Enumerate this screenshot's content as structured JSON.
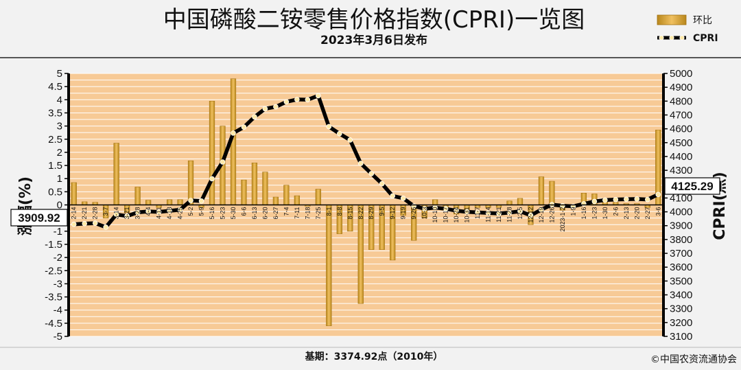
{
  "chart_data": {
    "type": "bar",
    "title": "中国磷酸二铵零售价格指数(CPRI)一览图",
    "subtitle": "2023年3月6日发布",
    "ylabel_left": "涨幅(%)",
    "ylabel_right": "CPRI(点)",
    "ylim_left": [
      -5,
      5
    ],
    "ylim_right": [
      3100,
      5000
    ],
    "yticks_left": [
      "5",
      "4.5",
      "4",
      "3.5",
      "3",
      "2.5",
      "2",
      "1.5",
      "1",
      "0.5",
      "0",
      "-0.5",
      "-1",
      "-1.5",
      "-2",
      "-2.5",
      "-3",
      "-3.5",
      "-4",
      "-4.5",
      "-5"
    ],
    "yticks_right": [
      "5000",
      "4900",
      "4800",
      "4700",
      "4600",
      "4500",
      "4400",
      "4300",
      "4200",
      "4100",
      "4000",
      "3900",
      "3800",
      "3700",
      "3600",
      "3500",
      "3400",
      "3300",
      "3200",
      "3100"
    ],
    "categories": [
      "2-14",
      "2-21",
      "2-28",
      "3-7",
      "3-14",
      "3-21",
      "3-28",
      "4-4",
      "4-11",
      "4-18",
      "4-25",
      "5-2",
      "5-9",
      "5-16",
      "5-23",
      "5-30",
      "6-6",
      "6-13",
      "6-20",
      "6-27",
      "7-4",
      "7-11",
      "7-18",
      "7-25",
      "8-1",
      "8-8",
      "8-15",
      "8-22",
      "8-29",
      "9-5",
      "9-12",
      "9-19",
      "9-26",
      "10-3",
      "10-10",
      "10-17",
      "10-24",
      "10-31",
      "11-7",
      "11-14",
      "11-21",
      "11-28",
      "12-5",
      "12-12",
      "12-19",
      "12-26",
      "2023-1-2",
      "1-9",
      "1-16",
      "1-23",
      "1-30",
      "2-6",
      "2-13",
      "2-20",
      "2-27",
      "3-6"
    ],
    "series": [
      {
        "name": "环比",
        "type": "bar",
        "axis": "left",
        "values": [
          0.85,
          0.12,
          0.1,
          -0.5,
          2.35,
          -0.3,
          0.68,
          0.18,
          -0.1,
          0.2,
          0.2,
          1.68,
          -0.1,
          3.95,
          3,
          4.8,
          0.95,
          1.6,
          1.25,
          0.3,
          0.75,
          0.35,
          -0.05,
          0.6,
          -4.6,
          -1.1,
          -1,
          -3.75,
          -1.7,
          -1.7,
          -2.1,
          -0.4,
          -1.35,
          -0.5,
          0.2,
          -0.2,
          -0.35,
          -0.2,
          -0.1,
          -0.1,
          -0.1,
          0.15,
          0.25,
          -0.75,
          1.07,
          0.9,
          -0.2,
          -0.1,
          0.45,
          0.42,
          0.25,
          0.1,
          0.05,
          0.05,
          -0.1,
          2.85
        ]
      },
      {
        "name": "CPRI",
        "type": "line",
        "axis": "right",
        "values": [
          3909.92,
          3915,
          3918,
          3889,
          3981,
          3969,
          3996,
          4003,
          3999,
          4007,
          4015,
          4082,
          4078,
          4239,
          4360,
          4569,
          4612,
          4686,
          4745,
          4759,
          4795,
          4812,
          4810,
          4839,
          4616,
          4565,
          4519,
          4350,
          4276,
          4203,
          4115,
          4098,
          4042,
          4022,
          4030,
          4022,
          4008,
          4000,
          3996,
          3992,
          3988,
          3994,
          4004,
          3974,
          4016,
          4052,
          4044,
          4040,
          4058,
          4075,
          4085,
          4089,
          4091,
          4093,
          4089,
          4125.29
        ]
      }
    ],
    "annotations": {
      "start_value": "3909.92",
      "end_value": "4125.29"
    },
    "footer": {
      "base": "基期：3374.92点（2010年）",
      "copyright": "©中国农资流通协会"
    },
    "colors": {
      "plot_background": "#f7ca96",
      "gridline": "#ffffff",
      "bar": "#e0a83a",
      "line": "#000000",
      "marker": "#ffe9a8"
    },
    "grid": true,
    "legend_position": "top-right"
  }
}
